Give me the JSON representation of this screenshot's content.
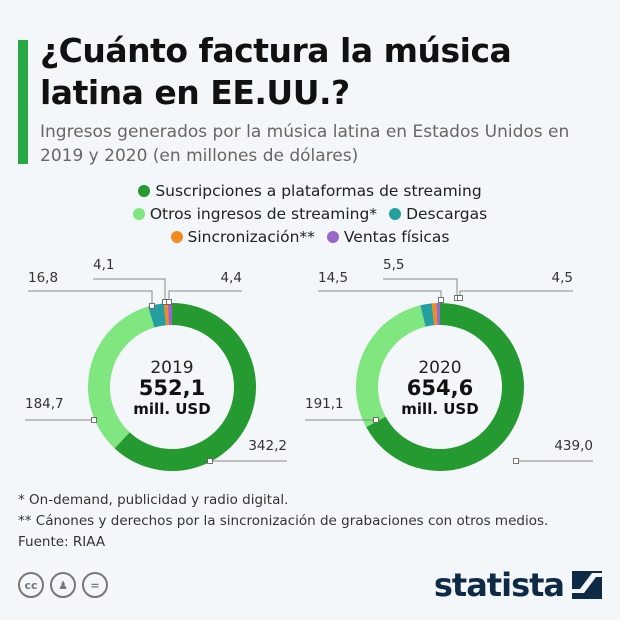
{
  "title": "¿Cuánto factura la música latina en EE.UU.?",
  "subtitle": "Ingresos generados por la música latina en Estados Unidos en 2019 y 2020 (en millones de dólares)",
  "notes": [
    "*   On-demand, publicidad y radio digital.",
    "** Cánones y derechos por la sincronización de grabaciones con otros medios.",
    "Fuente: RIAA"
  ],
  "brand": "statista",
  "license_icons": [
    "cc-icon",
    "attribution-icon",
    "no-derivatives-icon"
  ],
  "chart_data": [
    {
      "type": "pie",
      "donut": true,
      "year": "2019",
      "total": "552,1",
      "unit": "mill. USD",
      "categories": [
        "Suscripciones a plataformas de streaming",
        "Otros ingresos de streaming*",
        "Descargas",
        "Sincronización**",
        "Ventas físicas"
      ],
      "values": [
        342.2,
        184.7,
        16.8,
        4.1,
        4.4
      ],
      "labels": [
        "342,2",
        "184,7",
        "16,8",
        "4,1",
        "4,4"
      ]
    },
    {
      "type": "pie",
      "donut": true,
      "year": "2020",
      "total": "654,6",
      "unit": "mill. USD",
      "categories": [
        "Suscripciones a plataformas de streaming",
        "Otros ingresos de streaming*",
        "Descargas",
        "Sincronización**",
        "Ventas físicas"
      ],
      "values": [
        439.0,
        191.1,
        14.5,
        5.5,
        4.5
      ],
      "labels": [
        "439,0",
        "191,1",
        "14,5",
        "5,5",
        "4,5"
      ]
    }
  ],
  "legend": [
    {
      "label": "Suscripciones a plataformas de streaming",
      "color": "#259a30"
    },
    {
      "label": "Otros ingresos de streaming*",
      "color": "#80e680"
    },
    {
      "label": "Descargas",
      "color": "#239f9f"
    },
    {
      "label": "Sincronización**",
      "color": "#f28a1e"
    },
    {
      "label": "Ventas físicas",
      "color": "#9966cc"
    }
  ]
}
